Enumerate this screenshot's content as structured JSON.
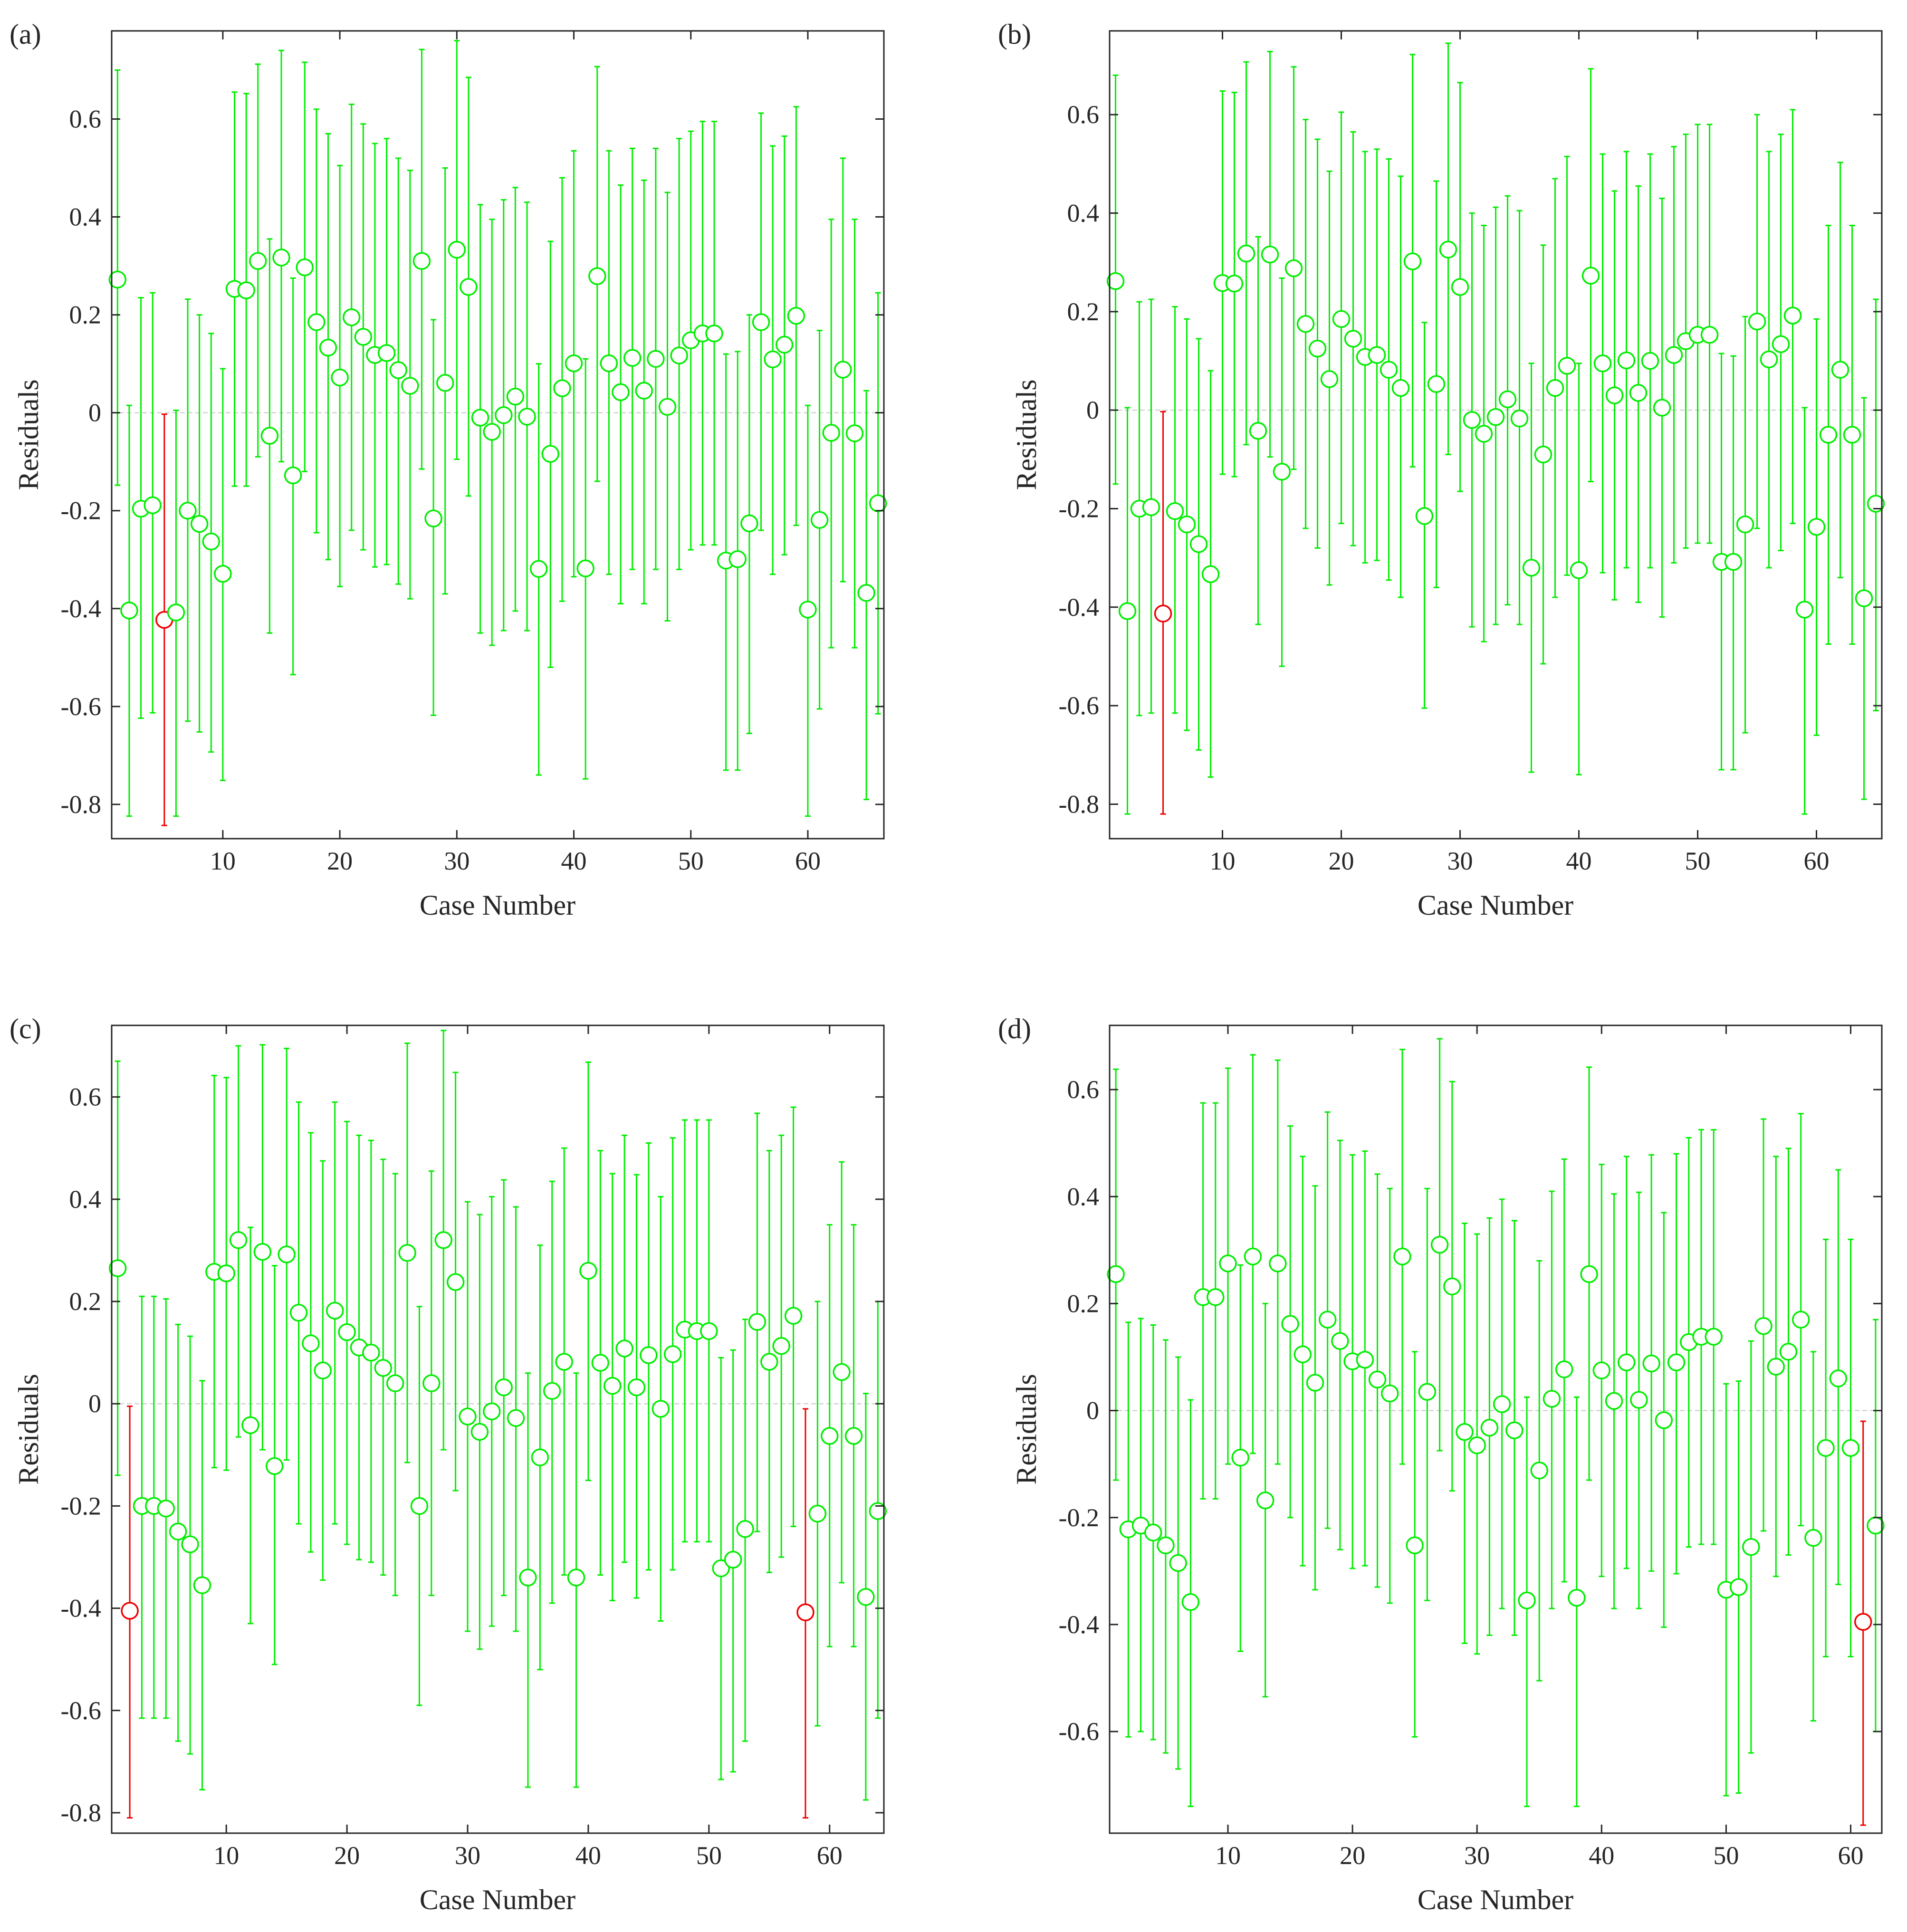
{
  "colors": {
    "normal": "#00ee00",
    "outlier": "#ee0000",
    "axis": "#262626",
    "zero_line": "#c8c8c8"
  },
  "chart_data": [
    {
      "type": "errorbar-scatter",
      "panel_label": "(a)",
      "xlabel": "Case Number",
      "ylabel": "Residuals",
      "xlim": [
        0.5,
        66.5
      ],
      "ylim": [
        -0.87,
        0.78
      ],
      "xticks": [
        "10",
        "20",
        "30",
        "40",
        "50",
        "60"
      ],
      "yticks": [
        "-0.8",
        "-0.6",
        "-0.4",
        "-0.2",
        "0",
        "0.2",
        "0.4",
        "0.6"
      ],
      "outliers": [
        5
      ],
      "residuals": [
        0.272,
        -0.404,
        -0.196,
        -0.189,
        -0.423,
        -0.408,
        -0.2,
        -0.227,
        -0.263,
        -0.329,
        0.253,
        0.25,
        0.31,
        -0.047,
        0.317,
        -0.128,
        0.297,
        0.185,
        0.133,
        0.072,
        0.195,
        0.155,
        0.118,
        0.122,
        0.087,
        0.055,
        0.31,
        -0.216,
        0.061,
        0.333,
        0.257,
        -0.01,
        -0.039,
        -0.005,
        0.033,
        -0.008,
        -0.319,
        -0.084,
        0.05,
        0.101,
        -0.318,
        0.279,
        0.101,
        0.042,
        0.112,
        0.045,
        0.11,
        0.012,
        0.117,
        0.148,
        0.162,
        0.162,
        -0.302,
        -0.299,
        -0.226,
        0.185,
        0.109,
        0.139,
        0.198,
        -0.402,
        -0.219,
        -0.041,
        0.088,
        -0.042,
        -0.368,
        -0.185
      ],
      "lower": [
        -0.148,
        -0.824,
        -0.624,
        -0.613,
        -0.843,
        -0.824,
        -0.63,
        -0.652,
        -0.693,
        -0.751,
        -0.15,
        -0.15,
        -0.09,
        -0.45,
        -0.1,
        -0.535,
        -0.12,
        -0.245,
        -0.3,
        -0.355,
        -0.24,
        -0.28,
        -0.315,
        -0.31,
        -0.35,
        -0.38,
        -0.115,
        -0.618,
        -0.37,
        -0.095,
        -0.17,
        -0.45,
        -0.475,
        -0.445,
        -0.405,
        -0.445,
        -0.74,
        -0.52,
        -0.385,
        -0.335,
        -0.748,
        -0.14,
        -0.33,
        -0.39,
        -0.32,
        -0.39,
        -0.32,
        -0.425,
        -0.32,
        -0.28,
        -0.27,
        -0.27,
        -0.73,
        -0.73,
        -0.655,
        -0.24,
        -0.33,
        -0.29,
        -0.23,
        -0.824,
        -0.605,
        -0.48,
        -0.345,
        -0.48,
        -0.79,
        -0.615
      ],
      "upper": [
        0.7,
        0.015,
        0.235,
        0.245,
        -0.003,
        0.005,
        0.232,
        0.2,
        0.162,
        0.09,
        0.655,
        0.652,
        0.712,
        0.355,
        0.74,
        0.275,
        0.716,
        0.62,
        0.57,
        0.505,
        0.63,
        0.59,
        0.55,
        0.56,
        0.52,
        0.495,
        0.742,
        0.19,
        0.5,
        0.76,
        0.685,
        0.425,
        0.395,
        0.435,
        0.46,
        0.43,
        0.1,
        0.35,
        0.48,
        0.535,
        0.11,
        0.707,
        0.535,
        0.465,
        0.54,
        0.475,
        0.54,
        0.45,
        0.56,
        0.575,
        0.595,
        0.595,
        0.12,
        0.125,
        0.2,
        0.612,
        0.545,
        0.565,
        0.625,
        0.015,
        0.168,
        0.395,
        0.52,
        0.395,
        0.045,
        0.245
      ]
    },
    {
      "type": "errorbar-scatter",
      "panel_label": "(b)",
      "xlabel": "Case Number",
      "ylabel": "Residuals",
      "xlim": [
        0.5,
        65.5
      ],
      "ylim": [
        -0.87,
        0.77
      ],
      "xticks": [
        "10",
        "20",
        "30",
        "40",
        "50",
        "60"
      ],
      "yticks": [
        "-0.8",
        "-0.6",
        "-0.4",
        "-0.2",
        "0",
        "0.2",
        "0.4",
        "0.6"
      ],
      "outliers": [
        5
      ],
      "residuals": [
        0.262,
        -0.408,
        -0.2,
        -0.197,
        -0.413,
        -0.205,
        -0.232,
        -0.272,
        -0.333,
        0.258,
        0.257,
        0.318,
        -0.042,
        0.316,
        -0.125,
        0.288,
        0.175,
        0.125,
        0.063,
        0.185,
        0.145,
        0.108,
        0.112,
        0.082,
        0.045,
        0.302,
        -0.215,
        0.053,
        0.326,
        0.25,
        -0.02,
        -0.048,
        -0.014,
        0.022,
        -0.017,
        -0.32,
        -0.09,
        0.045,
        0.09,
        -0.325,
        0.273,
        0.095,
        0.03,
        0.101,
        0.035,
        0.1,
        0.005,
        0.112,
        0.14,
        0.153,
        0.153,
        -0.308,
        -0.308,
        -0.232,
        0.18,
        0.103,
        0.134,
        0.192,
        -0.405,
        -0.237,
        -0.05,
        0.082,
        -0.05,
        -0.382,
        -0.19
      ],
      "lower": [
        -0.15,
        -0.82,
        -0.62,
        -0.615,
        -0.82,
        -0.615,
        -0.65,
        -0.69,
        -0.745,
        -0.13,
        -0.135,
        -0.07,
        -0.435,
        -0.095,
        -0.52,
        -0.12,
        -0.24,
        -0.28,
        -0.355,
        -0.23,
        -0.275,
        -0.31,
        -0.305,
        -0.345,
        -0.38,
        -0.115,
        -0.605,
        -0.36,
        -0.09,
        -0.165,
        -0.44,
        -0.47,
        -0.435,
        -0.395,
        -0.435,
        -0.735,
        -0.515,
        -0.38,
        -0.335,
        -0.74,
        -0.145,
        -0.33,
        -0.385,
        -0.32,
        -0.39,
        -0.32,
        -0.42,
        -0.31,
        -0.28,
        -0.27,
        -0.27,
        -0.73,
        -0.73,
        -0.655,
        -0.24,
        -0.32,
        -0.285,
        -0.23,
        -0.82,
        -0.66,
        -0.475,
        -0.34,
        -0.475,
        -0.79,
        -0.61
      ],
      "upper": [
        0.68,
        0.005,
        0.22,
        0.225,
        -0.003,
        0.21,
        0.185,
        0.145,
        0.08,
        0.648,
        0.645,
        0.707,
        0.352,
        0.728,
        0.268,
        0.697,
        0.59,
        0.55,
        0.485,
        0.605,
        0.565,
        0.525,
        0.53,
        0.51,
        0.475,
        0.722,
        0.178,
        0.465,
        0.745,
        0.665,
        0.4,
        0.375,
        0.412,
        0.435,
        0.405,
        0.095,
        0.335,
        0.47,
        0.515,
        0.095,
        0.693,
        0.52,
        0.445,
        0.525,
        0.455,
        0.52,
        0.43,
        0.535,
        0.56,
        0.58,
        0.58,
        0.115,
        0.11,
        0.19,
        0.6,
        0.525,
        0.56,
        0.61,
        0.005,
        0.185,
        0.375,
        0.503,
        0.375,
        0.025,
        0.225
      ]
    },
    {
      "type": "errorbar-scatter",
      "panel_label": "(c)",
      "xlabel": "Case Number",
      "ylabel": "Residuals",
      "xlim": [
        0.5,
        64.5
      ],
      "ylim": [
        -0.84,
        0.74
      ],
      "xticks": [
        "10",
        "20",
        "30",
        "40",
        "50",
        "60"
      ],
      "yticks": [
        "-0.8",
        "-0.6",
        "-0.4",
        "-0.2",
        "0",
        "0.2",
        "0.4",
        "0.6"
      ],
      "outliers": [
        2,
        58
      ],
      "residuals": [
        0.265,
        -0.405,
        -0.2,
        -0.2,
        -0.205,
        -0.25,
        -0.275,
        -0.355,
        0.258,
        0.255,
        0.32,
        -0.042,
        0.297,
        -0.122,
        0.292,
        0.178,
        0.118,
        0.065,
        0.182,
        0.14,
        0.11,
        0.1,
        0.07,
        0.04,
        0.295,
        -0.2,
        0.04,
        0.32,
        0.238,
        -0.025,
        -0.055,
        -0.015,
        0.032,
        -0.028,
        -0.34,
        -0.105,
        0.025,
        0.082,
        -0.34,
        0.26,
        0.08,
        0.035,
        0.108,
        0.032,
        0.095,
        -0.01,
        0.097,
        0.145,
        0.142,
        0.142,
        -0.322,
        -0.305,
        -0.245,
        0.16,
        0.082,
        0.113,
        0.172,
        -0.408,
        -0.215,
        -0.063,
        0.062,
        -0.063,
        -0.378,
        -0.21
      ],
      "lower": [
        -0.14,
        -0.81,
        -0.615,
        -0.615,
        -0.615,
        -0.66,
        -0.685,
        -0.755,
        -0.125,
        -0.13,
        -0.065,
        -0.43,
        -0.09,
        -0.51,
        -0.11,
        -0.235,
        -0.29,
        -0.345,
        -0.235,
        -0.275,
        -0.305,
        -0.31,
        -0.335,
        -0.375,
        -0.115,
        -0.59,
        -0.375,
        -0.09,
        -0.17,
        -0.445,
        -0.48,
        -0.435,
        -0.375,
        -0.445,
        -0.75,
        -0.52,
        -0.39,
        -0.335,
        -0.75,
        -0.15,
        -0.335,
        -0.385,
        -0.31,
        -0.38,
        -0.325,
        -0.425,
        -0.325,
        -0.27,
        -0.27,
        -0.27,
        -0.735,
        -0.72,
        -0.66,
        -0.25,
        -0.33,
        -0.3,
        -0.24,
        -0.81,
        -0.63,
        -0.475,
        -0.35,
        -0.475,
        -0.775,
        -0.615
      ],
      "upper": [
        0.67,
        -0.005,
        0.21,
        0.21,
        0.205,
        0.155,
        0.132,
        0.045,
        0.642,
        0.638,
        0.7,
        0.345,
        0.702,
        0.27,
        0.695,
        0.59,
        0.53,
        0.475,
        0.59,
        0.552,
        0.525,
        0.515,
        0.478,
        0.45,
        0.705,
        0.19,
        0.455,
        0.73,
        0.648,
        0.395,
        0.37,
        0.405,
        0.438,
        0.385,
        0.06,
        0.31,
        0.435,
        0.5,
        0.06,
        0.668,
        0.495,
        0.45,
        0.525,
        0.448,
        0.51,
        0.405,
        0.52,
        0.555,
        0.555,
        0.555,
        0.09,
        0.105,
        0.165,
        0.568,
        0.495,
        0.525,
        0.58,
        -0.01,
        0.2,
        0.35,
        0.473,
        0.35,
        0.02,
        0.2
      ]
    },
    {
      "type": "errorbar-scatter",
      "panel_label": "(d)",
      "xlabel": "Case Number",
      "ylabel": "Residuals",
      "xlim": [
        0.5,
        62.5
      ],
      "ylim": [
        -0.79,
        0.72
      ],
      "xticks": [
        "10",
        "20",
        "30",
        "40",
        "50",
        "60"
      ],
      "yticks": [
        "-0.6",
        "-0.4",
        "-0.2",
        "0",
        "0.2",
        "0.4",
        "0.6"
      ],
      "outliers": [
        61
      ],
      "residuals": [
        0.255,
        -0.222,
        -0.215,
        -0.228,
        -0.252,
        -0.285,
        -0.358,
        0.212,
        0.212,
        0.275,
        -0.088,
        0.288,
        -0.168,
        0.275,
        0.162,
        0.105,
        0.052,
        0.17,
        0.13,
        0.092,
        0.095,
        0.058,
        0.032,
        0.288,
        -0.252,
        0.035,
        0.31,
        0.232,
        -0.04,
        -0.065,
        -0.032,
        0.012,
        -0.037,
        -0.355,
        -0.112,
        0.022,
        0.077,
        -0.35,
        0.255,
        0.075,
        0.018,
        0.09,
        0.02,
        0.088,
        -0.018,
        0.09,
        0.128,
        0.138,
        0.138,
        -0.335,
        -0.33,
        -0.255,
        0.158,
        0.082,
        0.11,
        0.17,
        -0.238,
        -0.07,
        0.06,
        -0.07,
        -0.395,
        -0.215
      ],
      "lower": [
        -0.13,
        -0.61,
        -0.6,
        -0.615,
        -0.64,
        -0.67,
        -0.74,
        -0.165,
        -0.165,
        -0.1,
        -0.45,
        -0.08,
        -0.535,
        -0.1,
        -0.2,
        -0.29,
        -0.335,
        -0.22,
        -0.26,
        -0.295,
        -0.29,
        -0.33,
        -0.36,
        -0.1,
        -0.61,
        -0.355,
        -0.075,
        -0.15,
        -0.435,
        -0.455,
        -0.42,
        -0.37,
        -0.42,
        -0.74,
        -0.505,
        -0.37,
        -0.32,
        -0.74,
        -0.13,
        -0.31,
        -0.37,
        -0.295,
        -0.37,
        -0.3,
        -0.405,
        -0.305,
        -0.255,
        -0.25,
        -0.25,
        -0.72,
        -0.715,
        -0.64,
        -0.225,
        -0.31,
        -0.27,
        -0.215,
        -0.58,
        -0.46,
        -0.325,
        -0.46,
        -0.775,
        -0.6
      ],
      "upper": [
        0.638,
        0.165,
        0.172,
        0.16,
        0.132,
        0.1,
        0.02,
        0.575,
        0.575,
        0.64,
        0.272,
        0.665,
        0.2,
        0.655,
        0.532,
        0.475,
        0.42,
        0.558,
        0.505,
        0.478,
        0.485,
        0.442,
        0.415,
        0.675,
        0.11,
        0.415,
        0.695,
        0.615,
        0.35,
        0.33,
        0.36,
        0.395,
        0.355,
        0.025,
        0.28,
        0.41,
        0.47,
        0.025,
        0.642,
        0.46,
        0.405,
        0.475,
        0.408,
        0.478,
        0.37,
        0.48,
        0.51,
        0.525,
        0.525,
        0.05,
        0.055,
        0.13,
        0.545,
        0.475,
        0.49,
        0.555,
        0.11,
        0.32,
        0.45,
        0.32,
        -0.02,
        0.17
      ]
    }
  ]
}
